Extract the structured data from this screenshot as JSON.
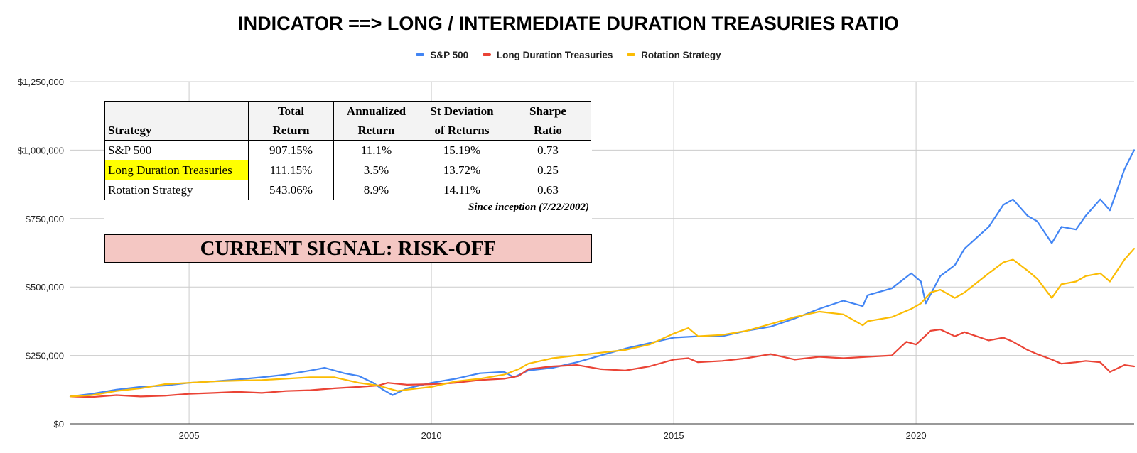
{
  "chart_data": {
    "type": "line",
    "title": "INDICATOR ==> LONG / INTERMEDIATE DURATION TREASURIES RATIO",
    "xlabel": "",
    "ylabel": "",
    "xlim": [
      2002.55,
      2024.5
    ],
    "ylim": [
      0,
      1250000
    ],
    "y_ticks": [
      0,
      250000,
      500000,
      750000,
      1000000,
      1250000
    ],
    "y_tick_labels": [
      "$0",
      "$250,000",
      "$500,000",
      "$750,000",
      "$1,000,000",
      "$1,250,000"
    ],
    "x_ticks": [
      2005,
      2010,
      2015,
      2020
    ],
    "x_tick_labels": [
      "2005",
      "2010",
      "2015",
      "2020"
    ],
    "grid": true,
    "legend_position": "top-center",
    "series": [
      {
        "name": "S&P 500",
        "color": "#4285f4",
        "x": [
          2002.55,
          2003.0,
          2003.5,
          2004.0,
          2004.5,
          2005.0,
          2005.5,
          2006.0,
          2006.5,
          2007.0,
          2007.5,
          2007.8,
          2008.2,
          2008.5,
          2008.8,
          2009.0,
          2009.2,
          2009.5,
          2010.0,
          2010.5,
          2011.0,
          2011.5,
          2011.7,
          2012.0,
          2012.5,
          2013.0,
          2013.5,
          2014.0,
          2014.5,
          2015.0,
          2015.5,
          2016.0,
          2016.5,
          2017.0,
          2017.5,
          2018.0,
          2018.5,
          2018.9,
          2019.0,
          2019.5,
          2019.9,
          2020.1,
          2020.2,
          2020.5,
          2020.8,
          2021.0,
          2021.5,
          2021.8,
          2022.0,
          2022.3,
          2022.5,
          2022.8,
          2023.0,
          2023.3,
          2023.5,
          2023.8,
          2024.0,
          2024.3,
          2024.5
        ],
        "values": [
          100000,
          110000,
          125000,
          135000,
          140000,
          150000,
          155000,
          162000,
          170000,
          180000,
          195000,
          205000,
          185000,
          175000,
          150000,
          125000,
          105000,
          130000,
          150000,
          165000,
          185000,
          190000,
          170000,
          195000,
          205000,
          225000,
          250000,
          275000,
          295000,
          315000,
          320000,
          320000,
          340000,
          355000,
          385000,
          420000,
          450000,
          430000,
          470000,
          495000,
          550000,
          520000,
          440000,
          540000,
          580000,
          640000,
          720000,
          800000,
          820000,
          760000,
          740000,
          660000,
          720000,
          710000,
          760000,
          820000,
          780000,
          930000,
          1000000
        ]
      },
      {
        "name": "Long Duration Treasuries",
        "color": "#ea4335",
        "x": [
          2002.55,
          2003.0,
          2003.5,
          2004.0,
          2004.5,
          2005.0,
          2005.5,
          2006.0,
          2006.5,
          2007.0,
          2007.5,
          2008.0,
          2008.5,
          2008.9,
          2009.1,
          2009.5,
          2010.0,
          2010.5,
          2011.0,
          2011.5,
          2011.8,
          2012.0,
          2012.5,
          2013.0,
          2013.5,
          2014.0,
          2014.5,
          2015.0,
          2015.3,
          2015.5,
          2016.0,
          2016.5,
          2017.0,
          2017.5,
          2018.0,
          2018.5,
          2019.0,
          2019.5,
          2019.8,
          2020.0,
          2020.3,
          2020.5,
          2020.8,
          2021.0,
          2021.5,
          2021.8,
          2022.0,
          2022.3,
          2022.5,
          2022.8,
          2023.0,
          2023.3,
          2023.5,
          2023.8,
          2024.0,
          2024.3,
          2024.5
        ],
        "values": [
          100000,
          98000,
          105000,
          100000,
          103000,
          110000,
          113000,
          117000,
          113000,
          120000,
          123000,
          130000,
          135000,
          140000,
          150000,
          143000,
          145000,
          150000,
          160000,
          165000,
          175000,
          200000,
          210000,
          215000,
          200000,
          195000,
          210000,
          235000,
          240000,
          225000,
          230000,
          240000,
          255000,
          235000,
          245000,
          240000,
          245000,
          250000,
          300000,
          290000,
          340000,
          345000,
          320000,
          335000,
          305000,
          315000,
          300000,
          270000,
          255000,
          235000,
          220000,
          225000,
          230000,
          225000,
          190000,
          215000,
          210000
        ]
      },
      {
        "name": "Rotation Strategy",
        "color": "#fbbc04",
        "x": [
          2002.55,
          2003.0,
          2003.5,
          2004.0,
          2004.5,
          2005.0,
          2005.5,
          2006.0,
          2006.5,
          2007.0,
          2007.5,
          2008.0,
          2008.5,
          2008.9,
          2009.3,
          2009.5,
          2010.0,
          2010.5,
          2011.0,
          2011.5,
          2011.8,
          2012.0,
          2012.5,
          2013.0,
          2013.5,
          2014.0,
          2014.5,
          2015.0,
          2015.3,
          2015.5,
          2016.0,
          2016.5,
          2017.0,
          2017.5,
          2018.0,
          2018.5,
          2018.9,
          2019.0,
          2019.5,
          2019.9,
          2020.1,
          2020.3,
          2020.5,
          2020.8,
          2021.0,
          2021.5,
          2021.8,
          2022.0,
          2022.3,
          2022.5,
          2022.8,
          2023.0,
          2023.3,
          2023.5,
          2023.8,
          2024.0,
          2024.3,
          2024.5
        ],
        "values": [
          100000,
          105000,
          120000,
          130000,
          145000,
          150000,
          155000,
          158000,
          160000,
          165000,
          170000,
          170000,
          150000,
          140000,
          120000,
          125000,
          135000,
          155000,
          165000,
          180000,
          200000,
          220000,
          240000,
          250000,
          260000,
          270000,
          290000,
          330000,
          350000,
          320000,
          325000,
          340000,
          365000,
          390000,
          410000,
          400000,
          360000,
          375000,
          390000,
          420000,
          440000,
          480000,
          490000,
          460000,
          480000,
          550000,
          590000,
          600000,
          560000,
          530000,
          460000,
          510000,
          520000,
          540000,
          550000,
          520000,
          600000,
          640000
        ]
      }
    ]
  },
  "stats_table": {
    "headers": {
      "strategy": "Strategy",
      "total_return_line1": "Total",
      "total_return_line2": "Return",
      "annualized_line1": "Annualized",
      "annualized_line2": "Return",
      "stdev_line1": "St Deviation",
      "stdev_line2": "of Returns",
      "sharpe_line1": "Sharpe",
      "sharpe_line2": "Ratio"
    },
    "rows": [
      {
        "strategy": "S&P 500",
        "total_return": "907.15%",
        "annualized_return": "11.1%",
        "st_deviation": "15.19%",
        "sharpe_ratio": "0.73"
      },
      {
        "strategy": "Long Duration Treasuries",
        "total_return": "111.15%",
        "annualized_return": "3.5%",
        "st_deviation": "13.72%",
        "sharpe_ratio": "0.25"
      },
      {
        "strategy": "Rotation Strategy",
        "total_return": "543.06%",
        "annualized_return": "8.9%",
        "st_deviation": "14.11%",
        "sharpe_ratio": "0.63"
      }
    ],
    "highlight_color": "#ffff00",
    "since_note": "Since inception (7/22/2002)"
  },
  "signal": {
    "text": "CURRENT SIGNAL: RISK-OFF",
    "background": "#f4c7c3"
  }
}
